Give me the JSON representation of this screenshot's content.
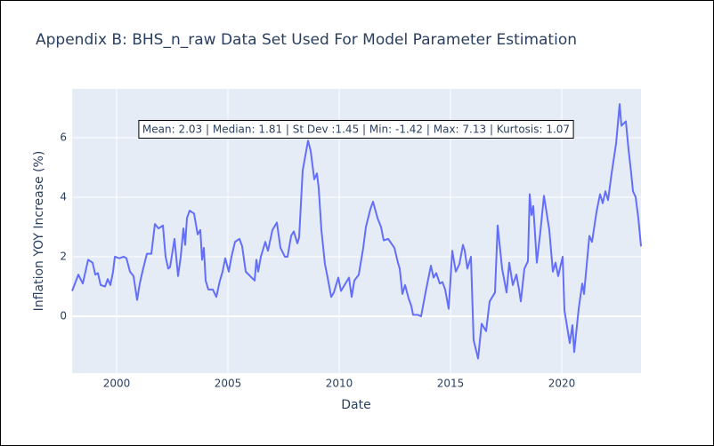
{
  "chart_data": {
    "type": "line",
    "title": "Appendix B: BHS_n_raw Data Set Used For Model Parameter Estimation",
    "x_label": "Date",
    "y_label": "Inflation YOY Increase (%)",
    "annotation": "Mean: 2.03 | Median: 1.81 | St Dev :1.45 | Min: -1.42 | Max: 7.13 | Kurtosis: 1.07",
    "color": "#636efa",
    "grid": true,
    "xlim": [
      1998,
      2023.56
    ],
    "ylim": [
      -1.91,
      7.64
    ],
    "xticks": [
      2000,
      2005,
      2010,
      2015,
      2020
    ],
    "yticks": [
      0,
      2,
      4,
      6
    ],
    "x": [
      1998.0,
      1998.28,
      1998.48,
      1998.72,
      1998.92,
      1999.04,
      1999.16,
      1999.28,
      1999.48,
      1999.6,
      1999.72,
      1999.84,
      1999.92,
      2000.12,
      2000.32,
      2000.44,
      2000.6,
      2000.76,
      2000.92,
      2001.04,
      2001.16,
      2001.36,
      2001.56,
      2001.72,
      2001.88,
      2002.08,
      2002.2,
      2002.32,
      2002.4,
      2002.6,
      2002.76,
      2002.88,
      2003.0,
      2003.08,
      2003.16,
      2003.28,
      2003.48,
      2003.64,
      2003.76,
      2003.84,
      2003.92,
      2004.0,
      2004.12,
      2004.32,
      2004.48,
      2004.64,
      2004.76,
      2004.88,
      2005.04,
      2005.16,
      2005.32,
      2005.52,
      2005.64,
      2005.8,
      2006.2,
      2006.28,
      2006.36,
      2006.48,
      2006.68,
      2006.8,
      2007.0,
      2007.2,
      2007.36,
      2007.56,
      2007.68,
      2007.84,
      2007.96,
      2008.12,
      2008.2,
      2008.36,
      2008.48,
      2008.6,
      2008.72,
      2008.88,
      2009.0,
      2009.08,
      2009.2,
      2009.36,
      2009.48,
      2009.64,
      2009.76,
      2009.96,
      2010.08,
      2010.28,
      2010.44,
      2010.56,
      2010.68,
      2010.88,
      2011.08,
      2011.2,
      2011.4,
      2011.52,
      2011.72,
      2011.88,
      2012.0,
      2012.2,
      2012.48,
      2012.64,
      2012.72,
      2012.84,
      2012.96,
      2013.12,
      2013.24,
      2013.32,
      2013.52,
      2013.68,
      2013.88,
      2014.12,
      2014.24,
      2014.36,
      2014.52,
      2014.64,
      2014.76,
      2014.92,
      2015.08,
      2015.24,
      2015.4,
      2015.56,
      2015.64,
      2015.76,
      2015.92,
      2016.04,
      2016.24,
      2016.4,
      2016.6,
      2016.76,
      2017.0,
      2017.12,
      2017.32,
      2017.52,
      2017.64,
      2017.8,
      2017.96,
      2018.08,
      2018.16,
      2018.32,
      2018.48,
      2018.56,
      2018.64,
      2018.72,
      2018.88,
      2019.04,
      2019.2,
      2019.44,
      2019.6,
      2019.72,
      2019.84,
      2020.04,
      2020.12,
      2020.36,
      2020.48,
      2020.56,
      2020.76,
      2020.92,
      2021.0,
      2021.24,
      2021.36,
      2021.56,
      2021.72,
      2021.84,
      2021.96,
      2022.08,
      2022.24,
      2022.44,
      2022.6,
      2022.68,
      2022.88,
      2023.0,
      2023.12,
      2023.2,
      2023.32,
      2023.44,
      2023.56
    ],
    "values": [
      0.85,
      1.4,
      1.1,
      1.9,
      1.8,
      1.4,
      1.45,
      1.05,
      1.0,
      1.25,
      1.05,
      1.5,
      2.0,
      1.95,
      2.0,
      1.95,
      1.5,
      1.35,
      0.55,
      1.1,
      1.5,
      2.1,
      2.1,
      3.1,
      2.95,
      3.05,
      2.0,
      1.6,
      1.65,
      2.6,
      1.35,
      2.0,
      2.95,
      2.4,
      3.3,
      3.55,
      3.45,
      2.75,
      2.9,
      1.9,
      2.3,
      1.2,
      0.9,
      0.9,
      0.65,
      1.2,
      1.5,
      1.95,
      1.5,
      2.0,
      2.5,
      2.6,
      2.35,
      1.5,
      1.2,
      1.9,
      1.5,
      2.0,
      2.5,
      2.2,
      2.9,
      3.15,
      2.3,
      2.0,
      2.0,
      2.7,
      2.85,
      2.45,
      2.65,
      4.9,
      5.4,
      5.9,
      5.55,
      4.6,
      4.8,
      4.3,
      2.9,
      1.75,
      1.3,
      0.65,
      0.8,
      1.3,
      0.85,
      1.1,
      1.3,
      0.65,
      1.2,
      1.4,
      2.3,
      3.0,
      3.6,
      3.85,
      3.3,
      3.0,
      2.55,
      2.6,
      2.3,
      1.8,
      1.6,
      0.75,
      1.05,
      0.6,
      0.35,
      0.05,
      0.05,
      0.0,
      0.8,
      1.7,
      1.3,
      1.45,
      1.1,
      1.15,
      0.9,
      0.25,
      2.2,
      1.5,
      1.75,
      2.4,
      2.2,
      1.6,
      2.0,
      -0.8,
      -1.42,
      -0.25,
      -0.5,
      0.5,
      0.8,
      3.05,
      1.6,
      0.8,
      1.8,
      1.05,
      1.4,
      0.9,
      0.5,
      1.6,
      1.85,
      4.1,
      3.4,
      3.7,
      1.8,
      2.85,
      4.05,
      2.9,
      1.5,
      1.8,
      1.35,
      2.0,
      0.2,
      -0.9,
      -0.3,
      -1.2,
      0.25,
      1.1,
      0.75,
      2.7,
      2.5,
      3.5,
      4.1,
      3.8,
      4.2,
      3.9,
      4.8,
      5.8,
      7.13,
      6.4,
      6.55,
      5.6,
      4.8,
      4.2,
      4.0,
      3.3,
      2.35
    ]
  }
}
